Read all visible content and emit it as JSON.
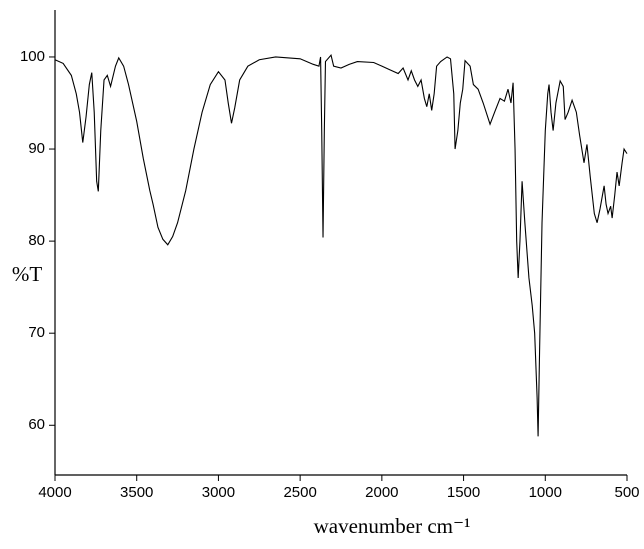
{
  "chart_data": {
    "type": "line",
    "x_label": "wavenumber cm⁻¹",
    "y_label": "%T",
    "xlim": [
      4000,
      500
    ],
    "xticks": [
      4000,
      3500,
      3000,
      2500,
      2000,
      1500,
      1000,
      500
    ],
    "ylim": [
      54.6,
      105.1
    ],
    "yticks": [
      60,
      70,
      80,
      90,
      100
    ],
    "series": [
      {
        "color": "#000000",
        "x": [
          4000,
          3950,
          3900,
          3870,
          3850,
          3830,
          3810,
          3790,
          3775,
          3760,
          3745,
          3735,
          3720,
          3700,
          3680,
          3660,
          3630,
          3610,
          3580,
          3550,
          3500,
          3460,
          3420,
          3400,
          3370,
          3340,
          3310,
          3280,
          3250,
          3200,
          3150,
          3100,
          3050,
          3000,
          2960,
          2940,
          2920,
          2900,
          2870,
          2820,
          2750,
          2650,
          2500,
          2420,
          2385,
          2375,
          2368,
          2360,
          2352,
          2345,
          2311,
          2295,
          2250,
          2200,
          2150,
          2050,
          2000,
          1950,
          1900,
          1870,
          1840,
          1820,
          1800,
          1780,
          1760,
          1740,
          1725,
          1710,
          1695,
          1680,
          1665,
          1640,
          1601,
          1580,
          1560,
          1552,
          1535,
          1520,
          1505,
          1491,
          1460,
          1440,
          1411,
          1380,
          1338,
          1310,
          1277,
          1250,
          1228,
          1210,
          1197,
          1185,
          1175,
          1166,
          1155,
          1142,
          1125,
          1100,
          1080,
          1065,
          1050,
          1044,
          1035,
          1020,
          1000,
          985,
          977,
          965,
          952,
          935,
          909,
          890,
          879,
          860,
          836,
          810,
          790,
          763,
          745,
          725,
          700,
          683,
          665,
          640,
          628,
          616,
          600,
          591,
          575,
          561,
          548,
          530,
          518,
          500
        ],
        "values": [
          99.7,
          99.3,
          98,
          96,
          94,
          90.7,
          93.5,
          97,
          98.3,
          94,
          86.5,
          85.4,
          92,
          97.5,
          98,
          96.8,
          99,
          99.9,
          99,
          97,
          93,
          89,
          85.5,
          84,
          81.5,
          80.2,
          79.6,
          80.5,
          82,
          85.5,
          90,
          94,
          97,
          98.4,
          97.5,
          95,
          92.8,
          94.5,
          97.5,
          99,
          99.7,
          100,
          99.8,
          99.2,
          99,
          100,
          92,
          80.4,
          92,
          99.5,
          100.2,
          99,
          98.8,
          99.2,
          99.5,
          99.4,
          99,
          98.6,
          98.2,
          98.8,
          97.5,
          98.5,
          97.5,
          96.8,
          97.5,
          95.5,
          94.6,
          96,
          94.2,
          96,
          99,
          99.5,
          100,
          99.8,
          96,
          90,
          92,
          95,
          96.5,
          99.6,
          99,
          97,
          96.5,
          95,
          92.7,
          94,
          95.5,
          95.2,
          96.5,
          95,
          97.2,
          90,
          80,
          76,
          80,
          86.5,
          82,
          76,
          73,
          70,
          63,
          58.8,
          68,
          82,
          92,
          96,
          97,
          94,
          92,
          95,
          97.4,
          96.8,
          93.2,
          94,
          95.3,
          94,
          91.5,
          88.5,
          90.5,
          87,
          83,
          82,
          83.5,
          86,
          84,
          83,
          83.8,
          82.5,
          85,
          87.5,
          86,
          88.5,
          90,
          89.5
        ]
      }
    ]
  }
}
